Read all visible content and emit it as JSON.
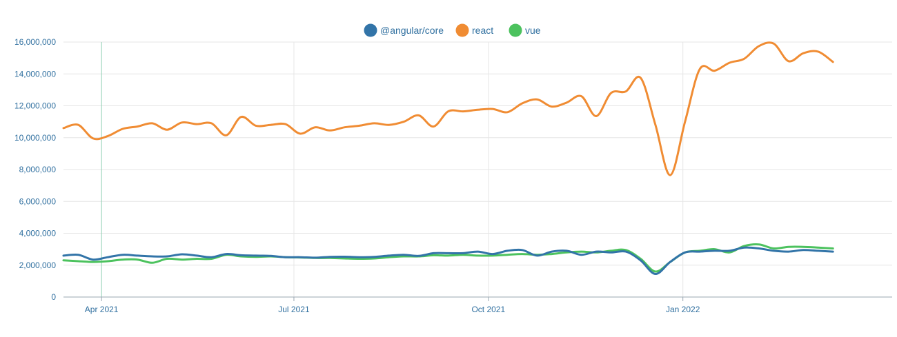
{
  "chart_data": {
    "type": "line",
    "x_start": "2021-03-14",
    "x_step_days": 7,
    "x_end": "2022-04-10",
    "ylim": [
      0,
      16000000
    ],
    "grid": true,
    "legend_position": "top-center",
    "y_ticks": [
      {
        "value": 0,
        "label": "0"
      },
      {
        "value": 2000000,
        "label": "2,000,000"
      },
      {
        "value": 4000000,
        "label": "4,000,000"
      },
      {
        "value": 6000000,
        "label": "6,000,000"
      },
      {
        "value": 8000000,
        "label": "8,000,000"
      },
      {
        "value": 10000000,
        "label": "10,000,000"
      },
      {
        "value": 12000000,
        "label": "12,000,000"
      },
      {
        "value": 14000000,
        "label": "14,000,000"
      },
      {
        "value": 16000000,
        "label": "16,000,000"
      }
    ],
    "x_ticks": [
      {
        "date": "2021-04-01",
        "label": "Apr 2021"
      },
      {
        "date": "2021-07-01",
        "label": "Jul 2021"
      },
      {
        "date": "2021-10-01",
        "label": "Oct 2021"
      },
      {
        "date": "2022-01-01",
        "label": "Jan 2022"
      }
    ],
    "highlight_date": "2021-04-01",
    "series": [
      {
        "name": "@angular/core",
        "color": "#3274a8",
        "values": [
          2600000,
          2650000,
          2350000,
          2500000,
          2650000,
          2600000,
          2550000,
          2550000,
          2680000,
          2600000,
          2500000,
          2700000,
          2620000,
          2600000,
          2580000,
          2500000,
          2500000,
          2470000,
          2520000,
          2530000,
          2500000,
          2520000,
          2600000,
          2650000,
          2580000,
          2750000,
          2750000,
          2750000,
          2850000,
          2700000,
          2900000,
          2950000,
          2600000,
          2850000,
          2900000,
          2650000,
          2850000,
          2800000,
          2850000,
          2300000,
          1450000,
          2200000,
          2800000,
          2850000,
          2900000,
          2900000,
          3100000,
          3050000,
          2900000,
          2850000,
          2950000,
          2900000,
          2850000
        ]
      },
      {
        "name": "react",
        "color": "#f08c33",
        "values": [
          10600000,
          10800000,
          9950000,
          10100000,
          10550000,
          10700000,
          10900000,
          10500000,
          10950000,
          10850000,
          10900000,
          10150000,
          11300000,
          10750000,
          10800000,
          10850000,
          10250000,
          10650000,
          10450000,
          10650000,
          10750000,
          10900000,
          10800000,
          11000000,
          11400000,
          10700000,
          11650000,
          11650000,
          11750000,
          11800000,
          11600000,
          12150000,
          12400000,
          11950000,
          12200000,
          12600000,
          11350000,
          12800000,
          12900000,
          13750000,
          10800000,
          7650000,
          11000000,
          14300000,
          14200000,
          14700000,
          14950000,
          15750000,
          15900000,
          14800000,
          15300000,
          15400000,
          14750000
        ]
      },
      {
        "name": "vue",
        "color": "#4cc25e",
        "values": [
          2300000,
          2250000,
          2200000,
          2250000,
          2350000,
          2350000,
          2150000,
          2400000,
          2350000,
          2400000,
          2400000,
          2650000,
          2550000,
          2520000,
          2550000,
          2500000,
          2480000,
          2450000,
          2450000,
          2420000,
          2400000,
          2420000,
          2500000,
          2550000,
          2550000,
          2620000,
          2600000,
          2650000,
          2600000,
          2600000,
          2650000,
          2700000,
          2650000,
          2700000,
          2800000,
          2850000,
          2800000,
          2900000,
          2950000,
          2400000,
          1600000,
          2200000,
          2800000,
          2900000,
          3000000,
          2800000,
          3200000,
          3300000,
          3050000,
          3150000,
          3150000,
          3100000,
          3050000
        ]
      }
    ]
  }
}
